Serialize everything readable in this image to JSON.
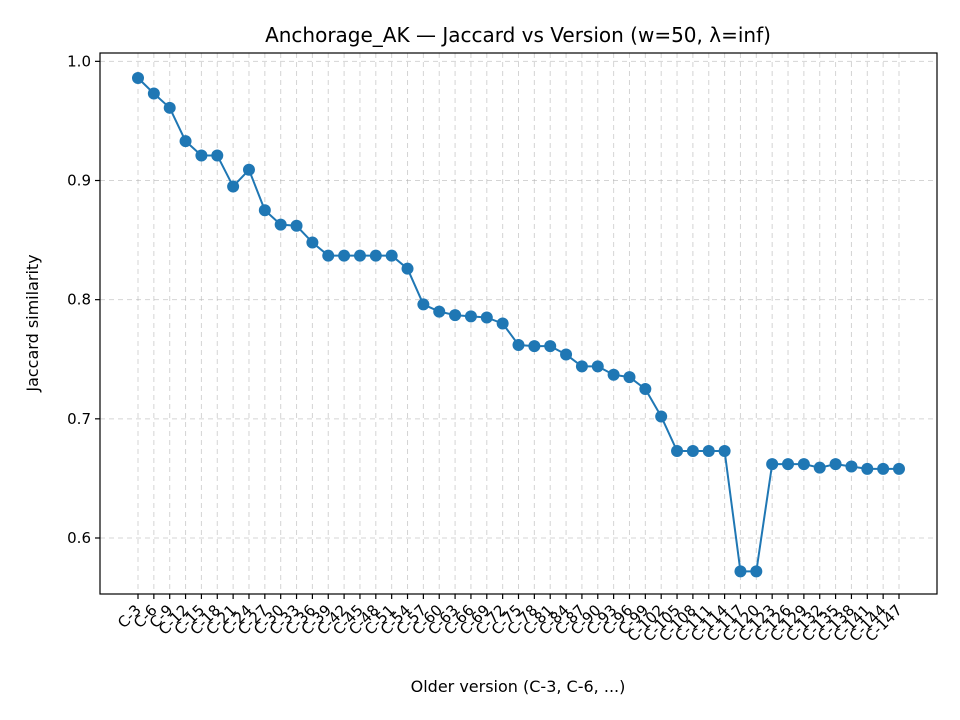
{
  "chart_data": {
    "type": "line",
    "title": "Anchorage_AK — Jaccard vs Version (w=50, λ=inf)",
    "xlabel": "Older version (C-3, C-6, ...)",
    "ylabel": "Jaccard similarity",
    "ylim": [
      0.553,
      1.007
    ],
    "yticks": [
      0.6,
      0.7,
      0.8,
      0.9,
      1.0
    ],
    "ytick_labels": [
      "0.6",
      "0.7",
      "0.8",
      "0.9",
      "1.0"
    ],
    "grid": true,
    "color": "#1f77b4",
    "categories": [
      "C-3",
      "C-6",
      "C-9",
      "C-12",
      "C-15",
      "C-18",
      "C-21",
      "C-24",
      "C-27",
      "C-30",
      "C-33",
      "C-36",
      "C-39",
      "C-42",
      "C-45",
      "C-48",
      "C-51",
      "C-54",
      "C-57",
      "C-60",
      "C-63",
      "C-66",
      "C-69",
      "C-72",
      "C-75",
      "C-78",
      "C-81",
      "C-84",
      "C-87",
      "C-90",
      "C-93",
      "C-96",
      "C-99",
      "C-102",
      "C-105",
      "C-108",
      "C-111",
      "C-114",
      "C-117",
      "C-120",
      "C-123",
      "C-126",
      "C-129",
      "C-132",
      "C-135",
      "C-138",
      "C-141",
      "C-144",
      "C-147"
    ],
    "series": [
      {
        "values": [
          0.986,
          0.973,
          0.961,
          0.933,
          0.921,
          0.921,
          0.895,
          0.909,
          0.875,
          0.863,
          0.862,
          0.848,
          0.837,
          0.837,
          0.837,
          0.837,
          0.837,
          0.826,
          0.796,
          0.79,
          0.787,
          0.786,
          0.785,
          0.78,
          0.762,
          0.761,
          0.761,
          0.754,
          0.744,
          0.744,
          0.737,
          0.735,
          0.725,
          0.702,
          0.673,
          0.673,
          0.673,
          0.673,
          0.572,
          0.572,
          0.662,
          0.662,
          0.662,
          0.659,
          0.662,
          0.66,
          0.658,
          0.658,
          0.658
        ]
      }
    ]
  }
}
